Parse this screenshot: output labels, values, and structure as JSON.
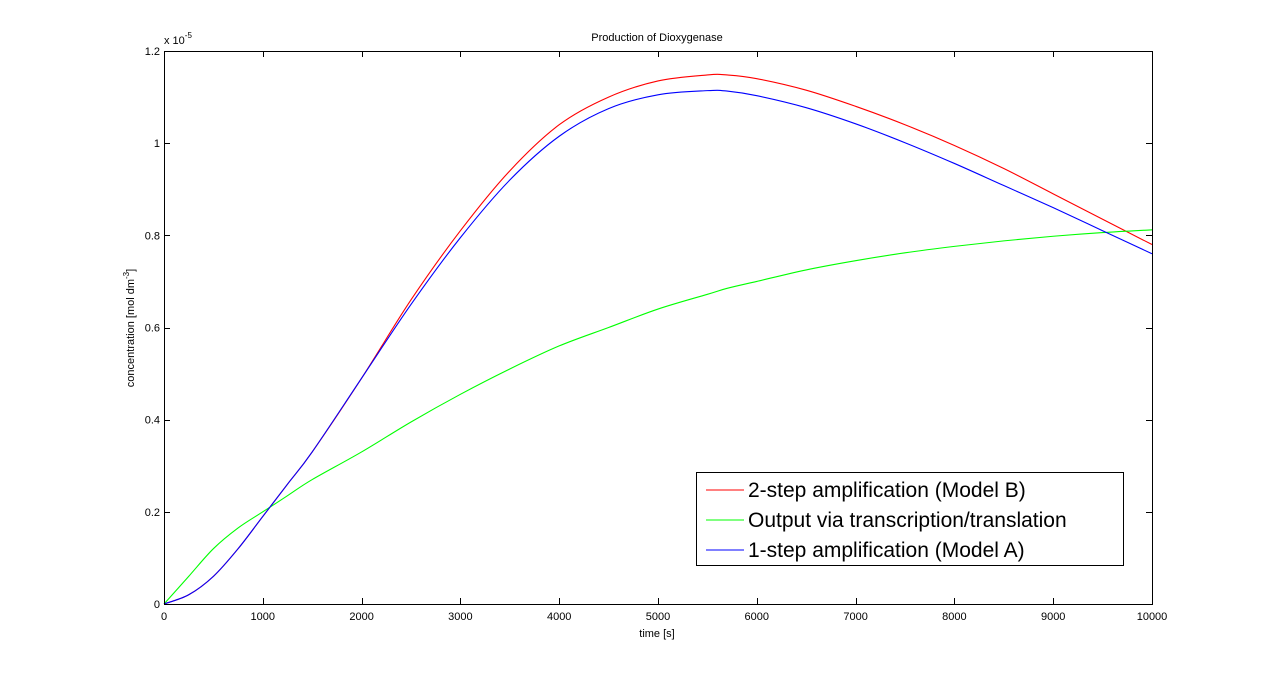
{
  "chart_data": {
    "type": "line",
    "title": "Production of Dioxygenase",
    "xlabel": "time [s]",
    "ylabel": "concentration [mol dm^{-3}]",
    "ylabel_main": "concentration [mol dm",
    "ylabel_sup": "-3",
    "ylabel_end": "]",
    "exponent_base": "x 10",
    "exponent_power": "-5",
    "xlim": [
      0,
      10000
    ],
    "ylim": [
      0,
      1.2
    ],
    "xticks": [
      0,
      1000,
      2000,
      3000,
      4000,
      5000,
      6000,
      7000,
      8000,
      9000,
      10000
    ],
    "yticks": [
      0,
      0.2,
      0.4,
      0.6,
      0.8,
      1,
      1.2
    ],
    "xtick_labels": [
      "0",
      "1000",
      "2000",
      "3000",
      "4000",
      "5000",
      "6000",
      "7000",
      "8000",
      "9000",
      "10000"
    ],
    "ytick_labels": [
      "0",
      "0.2",
      "0.4",
      "0.6",
      "0.8",
      "1",
      "1.2"
    ],
    "grid": false,
    "legend_position": "bottom-right",
    "x": [
      0,
      250,
      500,
      750,
      1000,
      1250,
      1500,
      2000,
      2500,
      3000,
      3500,
      4000,
      4500,
      5000,
      5500,
      5700,
      6000,
      6500,
      7000,
      7500,
      8000,
      8500,
      9000,
      9500,
      10000
    ],
    "series": [
      {
        "name": "2-step amplification (Model B)",
        "color": "#ff0000",
        "values": [
          0,
          0.02,
          0.06,
          0.12,
          0.19,
          0.26,
          0.33,
          0.49,
          0.66,
          0.81,
          0.94,
          1.04,
          1.1,
          1.135,
          1.148,
          1.148,
          1.14,
          1.115,
          1.08,
          1.04,
          0.995,
          0.945,
          0.89,
          0.835,
          0.78
        ]
      },
      {
        "name": "Output via transcription/translation",
        "color": "#00ff00",
        "values": [
          0,
          0.06,
          0.12,
          0.165,
          0.2,
          0.235,
          0.27,
          0.33,
          0.395,
          0.455,
          0.51,
          0.56,
          0.6,
          0.64,
          0.672,
          0.685,
          0.7,
          0.725,
          0.745,
          0.762,
          0.776,
          0.788,
          0.798,
          0.806,
          0.812
        ]
      },
      {
        "name": "1-step amplification (Model A)",
        "color": "#0000ff",
        "values": [
          0,
          0.02,
          0.06,
          0.12,
          0.19,
          0.26,
          0.33,
          0.49,
          0.65,
          0.795,
          0.92,
          1.015,
          1.075,
          1.105,
          1.114,
          1.113,
          1.103,
          1.077,
          1.042,
          1.001,
          0.956,
          0.908,
          0.86,
          0.81,
          0.76
        ]
      }
    ]
  }
}
